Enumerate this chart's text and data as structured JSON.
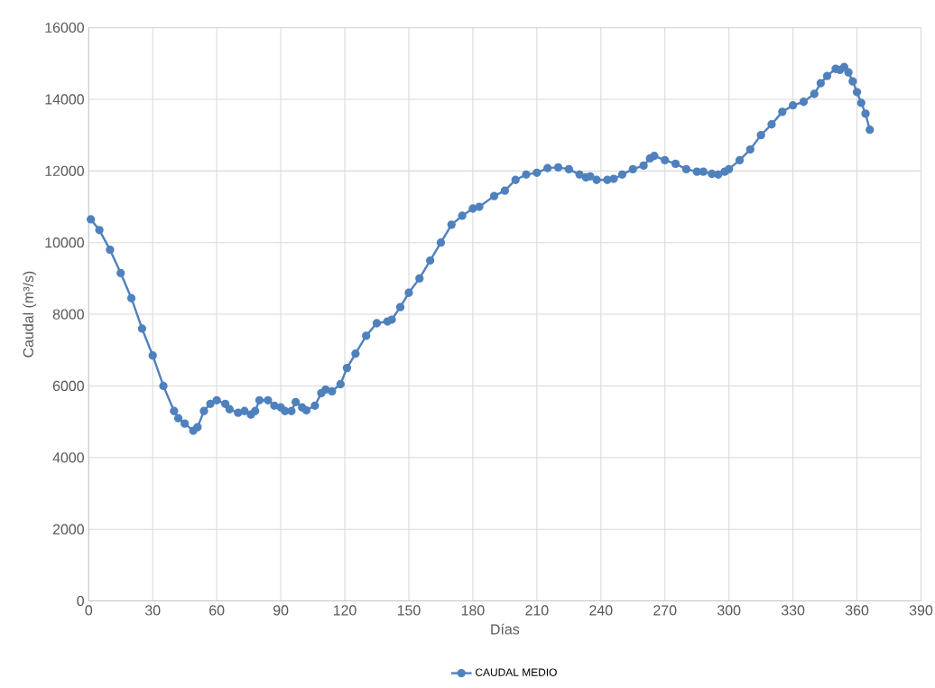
{
  "chart_data": {
    "type": "line",
    "xlabel": "Días",
    "ylabel": "Caudal (m³/s)",
    "xlim": [
      0,
      390
    ],
    "xticks": [
      0,
      30,
      60,
      90,
      120,
      150,
      180,
      210,
      240,
      270,
      300,
      330,
      360,
      390
    ],
    "ylim": [
      0,
      16000
    ],
    "yticks": [
      0,
      2000,
      4000,
      6000,
      8000,
      10000,
      12000,
      14000,
      16000
    ],
    "grid": true,
    "legend": "bottom",
    "marker": "circle",
    "line_style": "solid",
    "series": [
      {
        "name": "CAUDAL MEDIO",
        "color": "#4f81bd",
        "x": [
          1,
          5,
          10,
          15,
          20,
          25,
          30,
          35,
          40,
          42,
          45,
          49,
          51,
          54,
          57,
          60,
          64,
          66,
          70,
          73,
          76,
          78,
          80,
          84,
          87,
          90,
          92,
          95,
          97,
          100,
          102,
          106,
          109,
          111,
          114,
          118,
          121,
          125,
          130,
          135,
          140,
          142,
          146,
          150,
          155,
          160,
          165,
          170,
          175,
          180,
          183,
          190,
          195,
          200,
          205,
          210,
          215,
          220,
          225,
          230,
          233,
          235,
          238,
          243,
          246,
          250,
          255,
          260,
          263,
          265,
          270,
          275,
          280,
          285,
          288,
          292,
          295,
          298,
          300,
          305,
          310,
          315,
          320,
          325,
          330,
          335,
          340,
          343,
          346,
          350,
          352,
          354,
          356,
          358,
          360,
          362,
          364,
          366
        ],
        "values": [
          10650,
          10350,
          9800,
          9150,
          8450,
          7600,
          6850,
          6000,
          5300,
          5100,
          4950,
          4750,
          4850,
          5300,
          5500,
          5600,
          5500,
          5350,
          5250,
          5300,
          5200,
          5300,
          5600,
          5600,
          5450,
          5400,
          5300,
          5300,
          5550,
          5400,
          5320,
          5450,
          5800,
          5900,
          5850,
          6050,
          6500,
          6900,
          7400,
          7750,
          7800,
          7850,
          8200,
          8600,
          9000,
          9500,
          10000,
          10500,
          10750,
          10950,
          11000,
          11300,
          11450,
          11750,
          11900,
          11950,
          12080,
          12100,
          12050,
          11900,
          11820,
          11850,
          11750,
          11750,
          11780,
          11900,
          12050,
          12150,
          12350,
          12420,
          12300,
          12200,
          12050,
          11980,
          11980,
          11920,
          11900,
          11980,
          12050,
          12300,
          12600,
          13000,
          13300,
          13650,
          13830,
          13930,
          14150,
          14450,
          14650,
          14850,
          14820,
          14900,
          14750,
          14500,
          14200,
          13900,
          13600,
          13150
        ]
      }
    ]
  }
}
